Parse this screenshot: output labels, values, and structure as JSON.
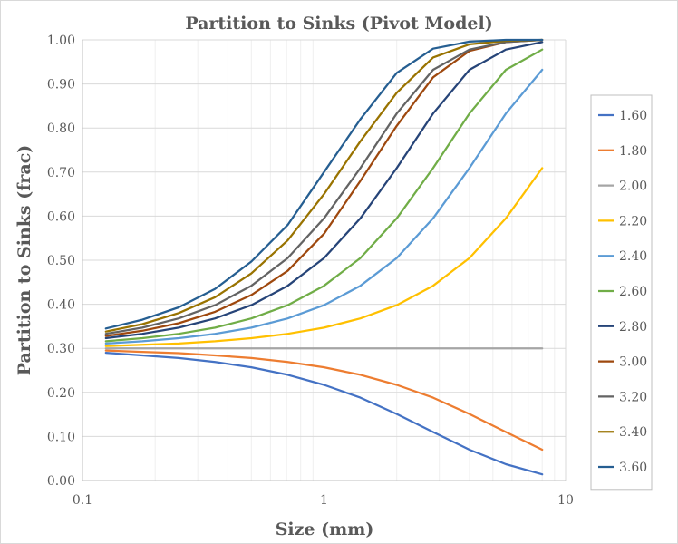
{
  "chart_data": {
    "type": "line",
    "title": "Partition to Sinks (Pivot Model)",
    "xlabel": "Size (mm)",
    "ylabel": "Partition to Sinks (frac)",
    "x_scale": "log",
    "xlim": [
      0.1,
      10
    ],
    "ylim": [
      0,
      1
    ],
    "x_tick_labels": [
      "0.1",
      "1",
      "10"
    ],
    "x_ticks": [
      0.1,
      1,
      10
    ],
    "y_ticks": [
      0,
      0.1,
      0.2,
      0.3,
      0.4,
      0.5,
      0.6,
      0.7,
      0.8,
      0.9,
      1.0
    ],
    "y_tick_labels": [
      "0.00",
      "0.10",
      "0.20",
      "0.30",
      "0.40",
      "0.50",
      "0.60",
      "0.70",
      "0.80",
      "0.90",
      "1.00"
    ],
    "grid": true,
    "legend_position": "right",
    "x": [
      0.125,
      0.177,
      0.25,
      0.354,
      0.5,
      0.707,
      1.0,
      1.414,
      2.0,
      2.828,
      4.0,
      5.657,
      8.0
    ],
    "series": [
      {
        "name": "1.60",
        "color": "#4472C4",
        "values": [
          0.29,
          0.284,
          0.278,
          0.269,
          0.257,
          0.24,
          0.217,
          0.188,
          0.151,
          0.11,
          0.07,
          0.037,
          0.014
        ]
      },
      {
        "name": "1.80",
        "color": "#ED7D31",
        "values": [
          0.295,
          0.292,
          0.289,
          0.284,
          0.278,
          0.269,
          0.257,
          0.24,
          0.217,
          0.188,
          0.151,
          0.11,
          0.07
        ]
      },
      {
        "name": "2.00",
        "color": "#A5A5A5",
        "values": [
          0.3,
          0.3,
          0.3,
          0.3,
          0.3,
          0.3,
          0.3,
          0.3,
          0.3,
          0.3,
          0.3,
          0.3,
          0.3
        ]
      },
      {
        "name": "2.20",
        "color": "#FFC000",
        "values": [
          0.305,
          0.308,
          0.311,
          0.316,
          0.323,
          0.333,
          0.347,
          0.368,
          0.398,
          0.442,
          0.505,
          0.595,
          0.709
        ]
      },
      {
        "name": "2.40",
        "color": "#5B9BD5",
        "values": [
          0.311,
          0.316,
          0.323,
          0.333,
          0.347,
          0.368,
          0.398,
          0.442,
          0.505,
          0.595,
          0.709,
          0.833,
          0.932
        ]
      },
      {
        "name": "2.60",
        "color": "#70AD47",
        "values": [
          0.316,
          0.323,
          0.333,
          0.347,
          0.368,
          0.398,
          0.442,
          0.505,
          0.595,
          0.709,
          0.833,
          0.932,
          0.978
        ]
      },
      {
        "name": "2.80",
        "color": "#264478",
        "values": [
          0.323,
          0.333,
          0.347,
          0.368,
          0.398,
          0.442,
          0.505,
          0.595,
          0.709,
          0.833,
          0.932,
          0.978,
          0.995
        ]
      },
      {
        "name": "3.00",
        "color": "#9E480E",
        "values": [
          0.328,
          0.34,
          0.357,
          0.383,
          0.421,
          0.476,
          0.56,
          0.68,
          0.805,
          0.915,
          0.975,
          0.995,
          1.0
        ]
      },
      {
        "name": "3.20",
        "color": "#636363",
        "values": [
          0.333,
          0.347,
          0.368,
          0.398,
          0.442,
          0.505,
          0.595,
          0.709,
          0.833,
          0.932,
          0.978,
          0.995,
          1.0
        ]
      },
      {
        "name": "3.40",
        "color": "#997300",
        "values": [
          0.338,
          0.355,
          0.38,
          0.416,
          0.47,
          0.545,
          0.65,
          0.77,
          0.88,
          0.96,
          0.99,
          0.998,
          1.0
        ]
      },
      {
        "name": "3.60",
        "color": "#255E91",
        "values": [
          0.345,
          0.365,
          0.393,
          0.435,
          0.497,
          0.58,
          0.7,
          0.82,
          0.925,
          0.98,
          0.996,
          1.0,
          1.0
        ]
      }
    ]
  }
}
